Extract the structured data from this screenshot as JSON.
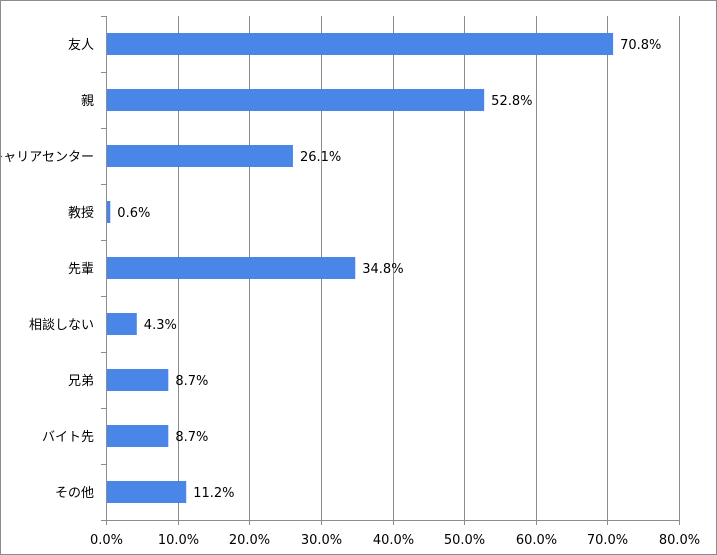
{
  "chart_data": {
    "type": "bar",
    "orientation": "horizontal",
    "categories": [
      "友人",
      "親",
      "キャリアセンター",
      "教授",
      "先輩",
      "相談しない",
      "兄弟",
      "バイト先",
      "その他"
    ],
    "values": [
      70.8,
      52.8,
      26.1,
      0.6,
      34.8,
      4.3,
      8.7,
      8.7,
      11.2
    ],
    "value_labels": [
      "70.8%",
      "52.8%",
      "26.1%",
      "0.6%",
      "34.8%",
      "4.3%",
      "8.7%",
      "8.7%",
      "11.2%"
    ],
    "x_ticks": [
      "0.0%",
      "10.0%",
      "20.0%",
      "30.0%",
      "40.0%",
      "50.0%",
      "60.0%",
      "70.0%",
      "80.0%"
    ],
    "xlim": [
      0,
      80
    ],
    "xlabel": "",
    "ylabel": "",
    "title": "",
    "grid": "vertical",
    "legend": "none",
    "bar_color": "#4a86e8",
    "grid_color": "#8c8c8c"
  }
}
